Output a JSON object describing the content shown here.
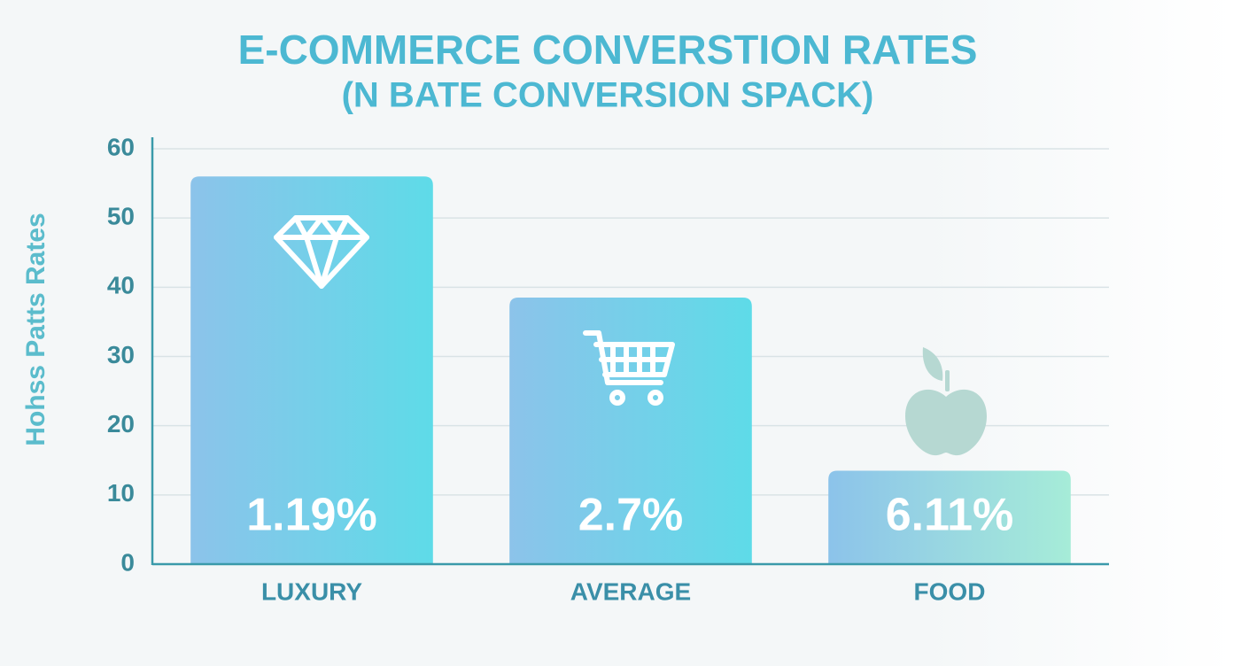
{
  "chart_data": {
    "type": "bar",
    "title": "E-COMMERCE CONVERSTION RATES",
    "subtitle": "(N BATE CONVERSION SPACK)",
    "y_label": "Hohss Patts Rates",
    "categories": [
      "LUXURY",
      "AVERAGE",
      "FOOD"
    ],
    "values": [
      56,
      38.5,
      13.5
    ],
    "annotations": [
      "1.19%",
      "2.7%",
      "6.11%"
    ],
    "colors": [
      "#5edbe8",
      "#5edbe8",
      "#a6ecd8"
    ],
    "ylim": [
      0,
      60
    ],
    "yticks": [
      0,
      10,
      20,
      30,
      40,
      50,
      60
    ],
    "grid": true
  }
}
